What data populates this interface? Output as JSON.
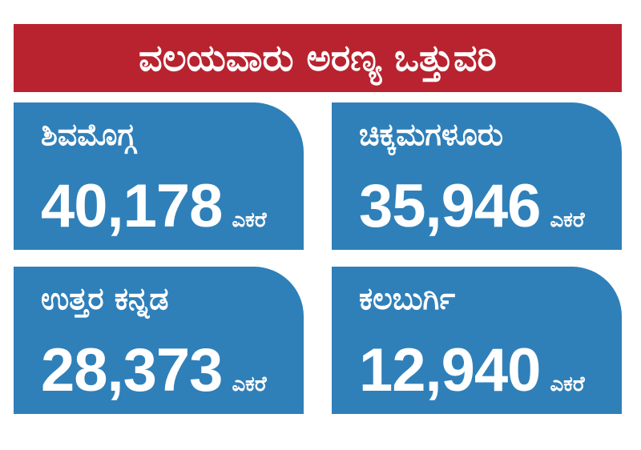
{
  "header": {
    "title": "ವಲಯವಾರು ಅರಣ್ಯ ಒತ್ತುವರಿ"
  },
  "cards": [
    {
      "region": "ಶಿವಮೊಗ್ಗ",
      "amount": "40,178",
      "unit": "ಎಕರೆ"
    },
    {
      "region": "ಚಿಕ್ಕಮಗಳೂರು",
      "amount": "35,946",
      "unit": "ಎಕರೆ"
    },
    {
      "region": "ಉತ್ತರ ಕನ್ನಡ",
      "amount": "28,373",
      "unit": "ಎಕರೆ"
    },
    {
      "region": "ಕಲಬುರ್ಗಿ",
      "amount": "12,940",
      "unit": "ಎಕರೆ"
    }
  ]
}
